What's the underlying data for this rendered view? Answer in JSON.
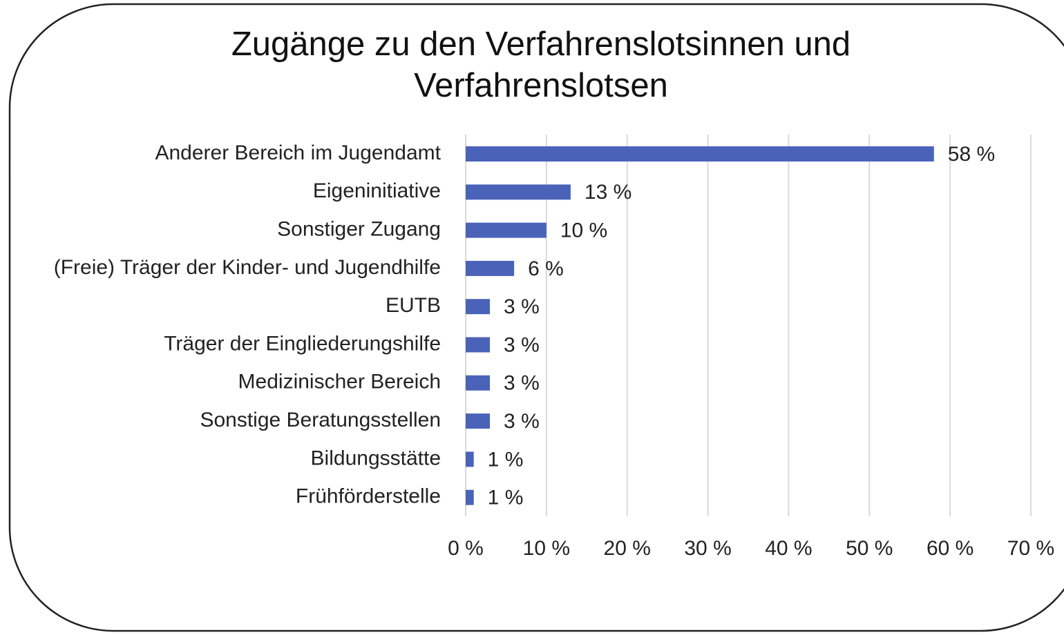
{
  "chart_data": {
    "type": "bar",
    "orientation": "horizontal",
    "title": "Zugänge zu den Verfahrenslotsinnen und Verfahrenslotsen",
    "categories": [
      "Anderer Bereich im Jugendamt",
      "Eigeninitiative",
      "Sonstiger Zugang",
      "(Freie) Träger der Kinder- und Jugendhilfe",
      "EUTB",
      "Träger der Eingliederungshilfe",
      "Medizinischer Bereich",
      "Sonstige Beratungsstellen",
      "Bildungsstätte",
      "Frühförderstelle"
    ],
    "values": [
      58,
      13,
      10,
      6,
      3,
      3,
      3,
      3,
      1,
      1
    ],
    "value_labels": [
      "58 %",
      "13 %",
      "10 %",
      "6 %",
      "3 %",
      "3 %",
      "3 %",
      "3 %",
      "1 %",
      "1 %"
    ],
    "color": "#4a63b9",
    "xlim": [
      0,
      70
    ],
    "xticks": [
      {
        "value": 0,
        "label": "0 %"
      },
      {
        "value": 10,
        "label": "10 %"
      },
      {
        "value": 20,
        "label": "20 %"
      },
      {
        "value": 30,
        "label": "30 %"
      },
      {
        "value": 40,
        "label": "40 %"
      },
      {
        "value": 50,
        "label": "50 %"
      },
      {
        "value": 60,
        "label": "60 %"
      },
      {
        "value": 70,
        "label": "70 %"
      }
    ],
    "grid": true
  }
}
